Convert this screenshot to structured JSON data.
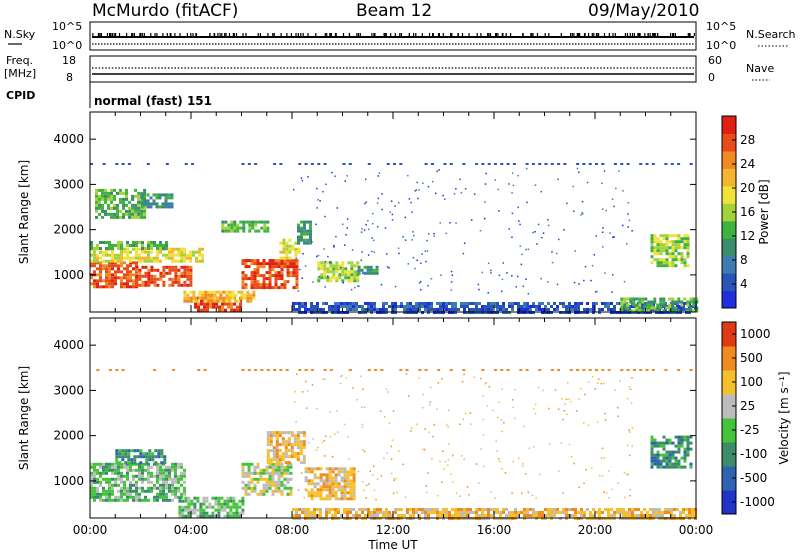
{
  "header": {
    "station": "McMurdo (fitACF)",
    "beam": "Beam 12",
    "date": "09/May/2010"
  },
  "status_panels": {
    "nsky_label": "N.Sky",
    "nsky_ticks": [
      "10^5",
      "10^0"
    ],
    "nsearch_label": "N.Search",
    "nsearch_ticks": [
      "10^5",
      "10^0"
    ],
    "freq_label": "Freq.",
    "freq_unit": "[MHz]",
    "freq_ticks": [
      "18",
      "8"
    ],
    "nave_label": "Nave",
    "nave_ticks": [
      "60",
      "0"
    ],
    "cpid_label": "CPID",
    "cpid_value": "normal (fast) 151"
  },
  "time_axis": {
    "label": "Time UT",
    "ticks": [
      "00:00",
      "04:00",
      "08:00",
      "12:00",
      "16:00",
      "20:00",
      "00:00"
    ]
  },
  "chart_data": [
    {
      "type": "heatmap",
      "name": "Power",
      "ylabel": "Slant Range [km]",
      "xlabel": "Time UT",
      "x_range_hours": [
        0,
        24
      ],
      "ylim": [
        180,
        4600
      ],
      "y_ticks": [
        "1000",
        "2000",
        "3000",
        "4000"
      ],
      "colorbar": {
        "label": "Power [dB]",
        "range": [
          0,
          32
        ],
        "ticks": [
          "4",
          "8",
          "12",
          "16",
          "20",
          "24",
          "28"
        ],
        "colors": [
          "#1f2fe0",
          "#2a55b8",
          "#3e7bb0",
          "#3a8c6a",
          "#3fb23f",
          "#a5d23a",
          "#f0e23a",
          "#f5b52e",
          "#f08a22",
          "#e94c1c",
          "#e02010"
        ]
      },
      "regions": [
        {
          "t": [
            0.0,
            1.8
          ],
          "r": [
            750,
            1300
          ],
          "level": 30
        },
        {
          "t": [
            1.8,
            4.0
          ],
          "r": [
            800,
            1200
          ],
          "level": 28
        },
        {
          "t": [
            0.0,
            4.5
          ],
          "r": [
            1300,
            1600
          ],
          "level": 19
        },
        {
          "t": [
            0.0,
            3.0
          ],
          "r": [
            1600,
            1750
          ],
          "level": 12
        },
        {
          "t": [
            4.0,
            6.0
          ],
          "r": [
            200,
            520
          ],
          "level": 30
        },
        {
          "t": [
            3.7,
            6.5
          ],
          "r": [
            420,
            650
          ],
          "level": 22
        },
        {
          "t": [
            6.0,
            8.2
          ],
          "r": [
            720,
            1350
          ],
          "level": 28
        },
        {
          "t": [
            7.5,
            8.3
          ],
          "r": [
            1350,
            1800
          ],
          "level": 18
        },
        {
          "t": [
            8.2,
            8.7
          ],
          "r": [
            1700,
            2200
          ],
          "level": 10
        },
        {
          "t": [
            0.2,
            2.2
          ],
          "r": [
            2300,
            2900
          ],
          "level": 12
        },
        {
          "t": [
            2.0,
            3.2
          ],
          "r": [
            2500,
            2800
          ],
          "level": 9
        },
        {
          "t": [
            5.2,
            7.0
          ],
          "r": [
            2000,
            2200
          ],
          "level": 12
        },
        {
          "t": [
            9.0,
            10.6
          ],
          "r": [
            900,
            1300
          ],
          "level": 16
        },
        {
          "t": [
            10.6,
            11.4
          ],
          "r": [
            1050,
            1200
          ],
          "level": 8
        },
        {
          "t": [
            22.2,
            23.7
          ],
          "r": [
            1200,
            1900
          ],
          "level": 17
        },
        {
          "t": [
            8.0,
            24.0
          ],
          "r": [
            180,
            400
          ],
          "level": 4
        },
        {
          "t": [
            21.0,
            24.0
          ],
          "r": [
            180,
            500
          ],
          "level": 14
        }
      ]
    },
    {
      "type": "heatmap",
      "name": "Velocity",
      "ylabel": "Slant Range [km]",
      "xlabel": "Time UT",
      "x_range_hours": [
        0,
        24
      ],
      "ylim": [
        180,
        4600
      ],
      "y_ticks": [
        "1000",
        "2000",
        "3000",
        "4000"
      ],
      "colorbar": {
        "label": "Velocity [m s⁻¹]",
        "ticks": [
          "1000",
          "500",
          "100",
          "25",
          "-25",
          "-100",
          "-500",
          "-1000"
        ],
        "colors": [
          "#2035c8",
          "#2f62b0",
          "#3c8c6a",
          "#43c43a",
          "#bcbcbc",
          "#f5c02c",
          "#f08a22",
          "#e03a12"
        ]
      },
      "regions": [
        {
          "t": [
            0.0,
            3.8
          ],
          "r": [
            600,
            1400
          ],
          "level": 3
        },
        {
          "t": [
            1.0,
            3.0
          ],
          "r": [
            1400,
            1700
          ],
          "level": 2
        },
        {
          "t": [
            3.5,
            6.0
          ],
          "r": [
            200,
            650
          ],
          "level": 3
        },
        {
          "t": [
            6.0,
            8.0
          ],
          "r": [
            700,
            1400
          ],
          "level": 4
        },
        {
          "t": [
            7.0,
            8.5
          ],
          "r": [
            1400,
            2100
          ],
          "level": 5
        },
        {
          "t": [
            8.5,
            10.5
          ],
          "r": [
            600,
            1300
          ],
          "level": 5
        },
        {
          "t": [
            22.2,
            23.8
          ],
          "r": [
            1300,
            2000
          ],
          "level": 2
        },
        {
          "t": [
            8.0,
            24.0
          ],
          "r": [
            180,
            400
          ],
          "level": 5
        }
      ]
    }
  ]
}
